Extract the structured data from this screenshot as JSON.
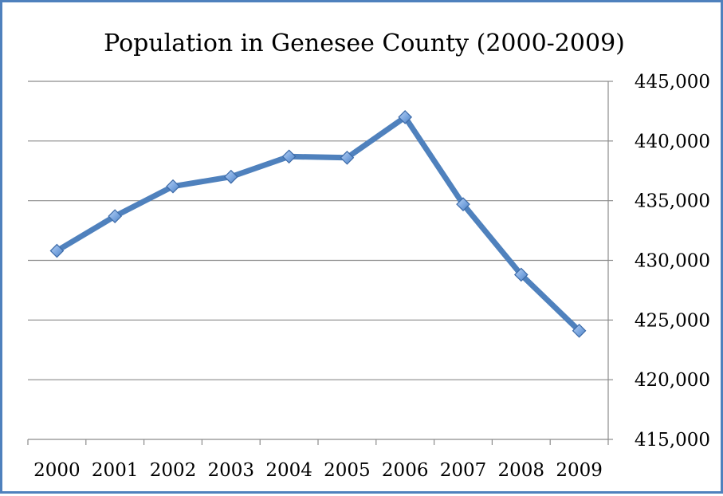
{
  "chart_data": {
    "type": "line",
    "title": "Population in Genesee County (2000-2009)",
    "xlabel": "",
    "ylabel": "",
    "categories": [
      "2000",
      "2001",
      "2002",
      "2003",
      "2004",
      "2005",
      "2006",
      "2007",
      "2008",
      "2009"
    ],
    "series": [
      {
        "name": "Population",
        "values": [
          430800,
          433700,
          436200,
          437000,
          438700,
          438600,
          442000,
          434700,
          428800,
          424100
        ]
      }
    ],
    "ylim": [
      415000,
      445000
    ],
    "yticks": [
      415000,
      420000,
      425000,
      430000,
      435000,
      440000,
      445000
    ],
    "ytick_labels": [
      "415,000",
      "420,000",
      "425,000",
      "430,000",
      "435,000",
      "440,000",
      "445,000"
    ],
    "y_axis_side": "right",
    "grid": true,
    "legend": "none",
    "colors": {
      "line": "#4f81bd",
      "marker_fill": "#7aa6e0",
      "marker_stroke": "#3c6aa8",
      "grid": "#8c8c8c",
      "frame": "#4f81bd"
    }
  }
}
